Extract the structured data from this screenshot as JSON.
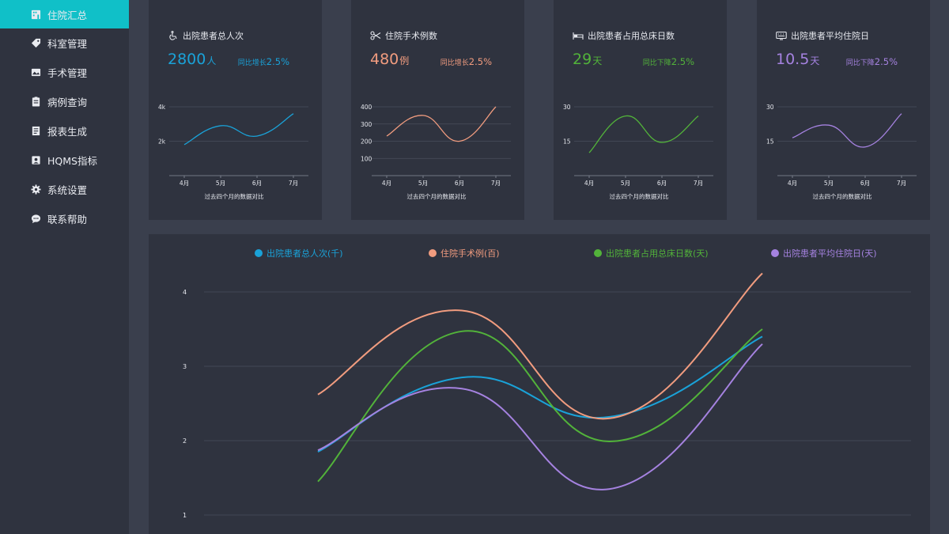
{
  "sidebar": {
    "items": [
      {
        "label": "住院汇总",
        "icon": "building-icon",
        "active": true
      },
      {
        "label": "科室管理",
        "icon": "tag-icon",
        "active": false
      },
      {
        "label": "手术管理",
        "icon": "image-icon",
        "active": false
      },
      {
        "label": "病例查询",
        "icon": "clipboard-icon",
        "active": false
      },
      {
        "label": "报表生成",
        "icon": "report-icon",
        "active": false
      },
      {
        "label": "HQMS指标",
        "icon": "portrait-icon",
        "active": false
      },
      {
        "label": "系统设置",
        "icon": "gear-icon",
        "active": false
      },
      {
        "label": "联系帮助",
        "icon": "chat-icon",
        "active": false
      }
    ]
  },
  "colors": {
    "accent": "#10c0c8",
    "blue": "#1aa2d8",
    "orange": "#f19c7f",
    "green": "#52b33a",
    "purple": "#a582e0"
  },
  "cards": [
    {
      "icon": "wheelchair-icon",
      "title": "出院患者总人次",
      "value": "2800",
      "unit": "人",
      "change_label": "同比增长",
      "change_value": "2.5%",
      "color": "#1aa2d8",
      "footer": "过去四个月的数据对比"
    },
    {
      "icon": "scissors-icon",
      "title": "住院手术例数",
      "value": "480",
      "unit": "例",
      "change_label": "同比增长",
      "change_value": "2.5%",
      "color": "#f19c7f",
      "footer": "过去四个月的数据对比"
    },
    {
      "icon": "bed-icon",
      "title": "出院患者占用总床日数",
      "value": "29",
      "unit": "天",
      "change_label": "同比下降",
      "change_value": "2.5%",
      "color": "#52b33a",
      "footer": "过去四个月的数据对比"
    },
    {
      "icon": "keyboard-icon",
      "title": "出院患者平均住院日",
      "value": "10.5",
      "unit": "天",
      "change_label": "同比下降",
      "change_value": "2.5%",
      "color": "#a582e0",
      "footer": "过去四个月的数据对比"
    }
  ],
  "chart_data": [
    {
      "type": "line",
      "categories": [
        "4月",
        "5月",
        "6月",
        "7月"
      ],
      "yticks": [
        "2k",
        "4k"
      ],
      "ylim": [
        0,
        4000
      ],
      "series": [
        {
          "values": [
            1800,
            2900,
            2300,
            3600
          ]
        }
      ],
      "xlabel": "过去四个月的数据对比",
      "color": "#1aa2d8"
    },
    {
      "type": "line",
      "categories": [
        "4月",
        "5月",
        "6月",
        "7月"
      ],
      "yticks": [
        "100",
        "200",
        "300",
        "400"
      ],
      "ylim": [
        0,
        400
      ],
      "series": [
        {
          "values": [
            230,
            350,
            200,
            400
          ]
        }
      ],
      "xlabel": "过去四个月的数据对比",
      "color": "#f19c7f"
    },
    {
      "type": "line",
      "categories": [
        "4月",
        "5月",
        "6月",
        "7月"
      ],
      "yticks": [
        "15",
        "30"
      ],
      "ylim": [
        0,
        30
      ],
      "series": [
        {
          "values": [
            10,
            26,
            14.5,
            26
          ]
        }
      ],
      "xlabel": "过去四个月的数据对比",
      "color": "#52b33a"
    },
    {
      "type": "line",
      "categories": [
        "4月",
        "5月",
        "6月",
        "7月"
      ],
      "yticks": [
        "15",
        "30"
      ],
      "ylim": [
        0,
        30
      ],
      "series": [
        {
          "values": [
            16.5,
            22,
            12.5,
            27
          ]
        }
      ],
      "xlabel": "过去四个月的数据对比",
      "color": "#a582e0"
    },
    {
      "type": "line",
      "yticks": [
        "1",
        "2",
        "3",
        "4"
      ],
      "ylim": [
        1,
        4
      ],
      "legend_position": "top",
      "series": [
        {
          "name": "出院患者总人次(千)",
          "values": [
            1.85,
            2.85,
            2.32,
            3.4
          ],
          "color": "#1aa2d8"
        },
        {
          "name": "住院手术例(百)",
          "values": [
            2.62,
            3.75,
            2.3,
            4.25
          ],
          "color": "#f19c7f"
        },
        {
          "name": "出院患者占用总床日数(天)",
          "values": [
            1.45,
            3.47,
            1.99,
            3.5
          ],
          "color": "#52b33a"
        },
        {
          "name": "出院患者平均住院日(天)",
          "values": [
            1.87,
            2.7,
            1.35,
            3.3
          ],
          "color": "#a582e0"
        }
      ]
    }
  ]
}
